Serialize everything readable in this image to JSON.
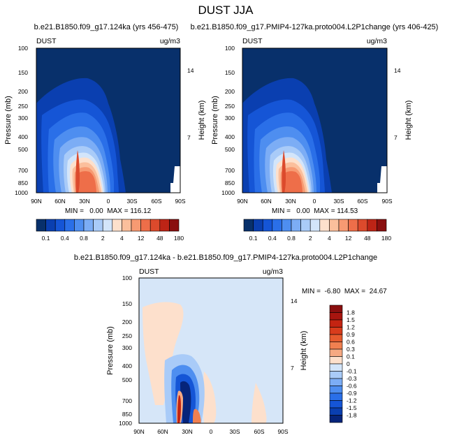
{
  "figure": {
    "title": "DUST JJA"
  },
  "chart_data": [
    {
      "type": "heatmap",
      "title": "b.e21.B1850.f09_g17.124ka (yrs 456-475)",
      "variable_label": "DUST",
      "units_label": "ug/m3",
      "ylabel": "Pressure (mb)",
      "ylabel_right": "Height (km)",
      "x_ticks": [
        "90N",
        "60N",
        "30N",
        "0",
        "30S",
        "60S",
        "90S"
      ],
      "y_ticks": [
        "100",
        "150",
        "200",
        "250",
        "300",
        "400",
        "500",
        "700",
        "850",
        "1000"
      ],
      "y_ticks_right": [
        "14",
        "7"
      ],
      "xlim": [
        90,
        -90
      ],
      "ylim": [
        1000,
        100
      ],
      "stats": "MIN =   0.00  MAX = 116.12",
      "colorbar_levels": [
        "0.1",
        "0.4",
        "0.8",
        "2",
        "4",
        "12",
        "48",
        "180"
      ]
    },
    {
      "type": "heatmap",
      "title": "b.e21.B1850.f09_g17.PMIP4-127ka.proto004.L2P1change (yrs 406-425)",
      "variable_label": "DUST",
      "units_label": "ug/m3",
      "ylabel": "Pressure (mb)",
      "ylabel_right": "Height (km)",
      "x_ticks": [
        "90N",
        "60N",
        "30N",
        "0",
        "30S",
        "60S",
        "90S"
      ],
      "y_ticks": [
        "100",
        "150",
        "200",
        "250",
        "300",
        "400",
        "500",
        "700",
        "850",
        "1000"
      ],
      "y_ticks_right": [
        "14",
        "7"
      ],
      "xlim": [
        90,
        -90
      ],
      "ylim": [
        1000,
        100
      ],
      "stats": "MIN =   0.00  MAX = 114.53",
      "colorbar_levels": [
        "0.1",
        "0.4",
        "0.8",
        "2",
        "4",
        "12",
        "48",
        "180"
      ]
    },
    {
      "type": "heatmap",
      "title": "b.e21.B1850.f09_g17.124ka - b.e21.B1850.f09_g17.PMIP4-127ka.proto004.L2P1change",
      "variable_label": "DUST",
      "units_label": "ug/m3",
      "ylabel": "Pressure (mb)",
      "ylabel_right": "Height (km)",
      "x_ticks": [
        "90N",
        "60N",
        "30N",
        "0",
        "30S",
        "60S",
        "90S"
      ],
      "y_ticks": [
        "100",
        "150",
        "200",
        "250",
        "300",
        "400",
        "500",
        "700",
        "850",
        "1000"
      ],
      "y_ticks_right": [
        "14",
        "7"
      ],
      "xlim": [
        90,
        -90
      ],
      "ylim": [
        1000,
        100
      ],
      "stats": "MIN =  -6.80  MAX =  24.67",
      "colorbar_levels": [
        "1.8",
        "1.5",
        "1.2",
        "0.9",
        "0.6",
        "0.3",
        "0.1",
        "0",
        "-0.1",
        "-0.3",
        "-0.6",
        "-0.9",
        "-1.2",
        "-1.5",
        "-1.8"
      ]
    }
  ],
  "palettes": {
    "dust": [
      "#08306b",
      "#0a3fb0",
      "#1555d6",
      "#2a6fe8",
      "#4e8ef0",
      "#7cadf5",
      "#a9cbf8",
      "#d3e5fa",
      "#fde0cc",
      "#fbbf9c",
      "#f79a72",
      "#ee6e49",
      "#dc4a2c",
      "#bd2416",
      "#8a0f0f"
    ],
    "diff": [
      "#8a0f0f",
      "#a8150f",
      "#c42412",
      "#d83c1c",
      "#e65b2e",
      "#f08050",
      "#f6a982",
      "#fde0cc",
      "#d3e5fa",
      "#a9cbf8",
      "#7cadf5",
      "#4e8ef0",
      "#2a6fe8",
      "#1555d6",
      "#0a3fb0",
      "#06247a"
    ],
    "diff_background": "#d6e6f8"
  }
}
